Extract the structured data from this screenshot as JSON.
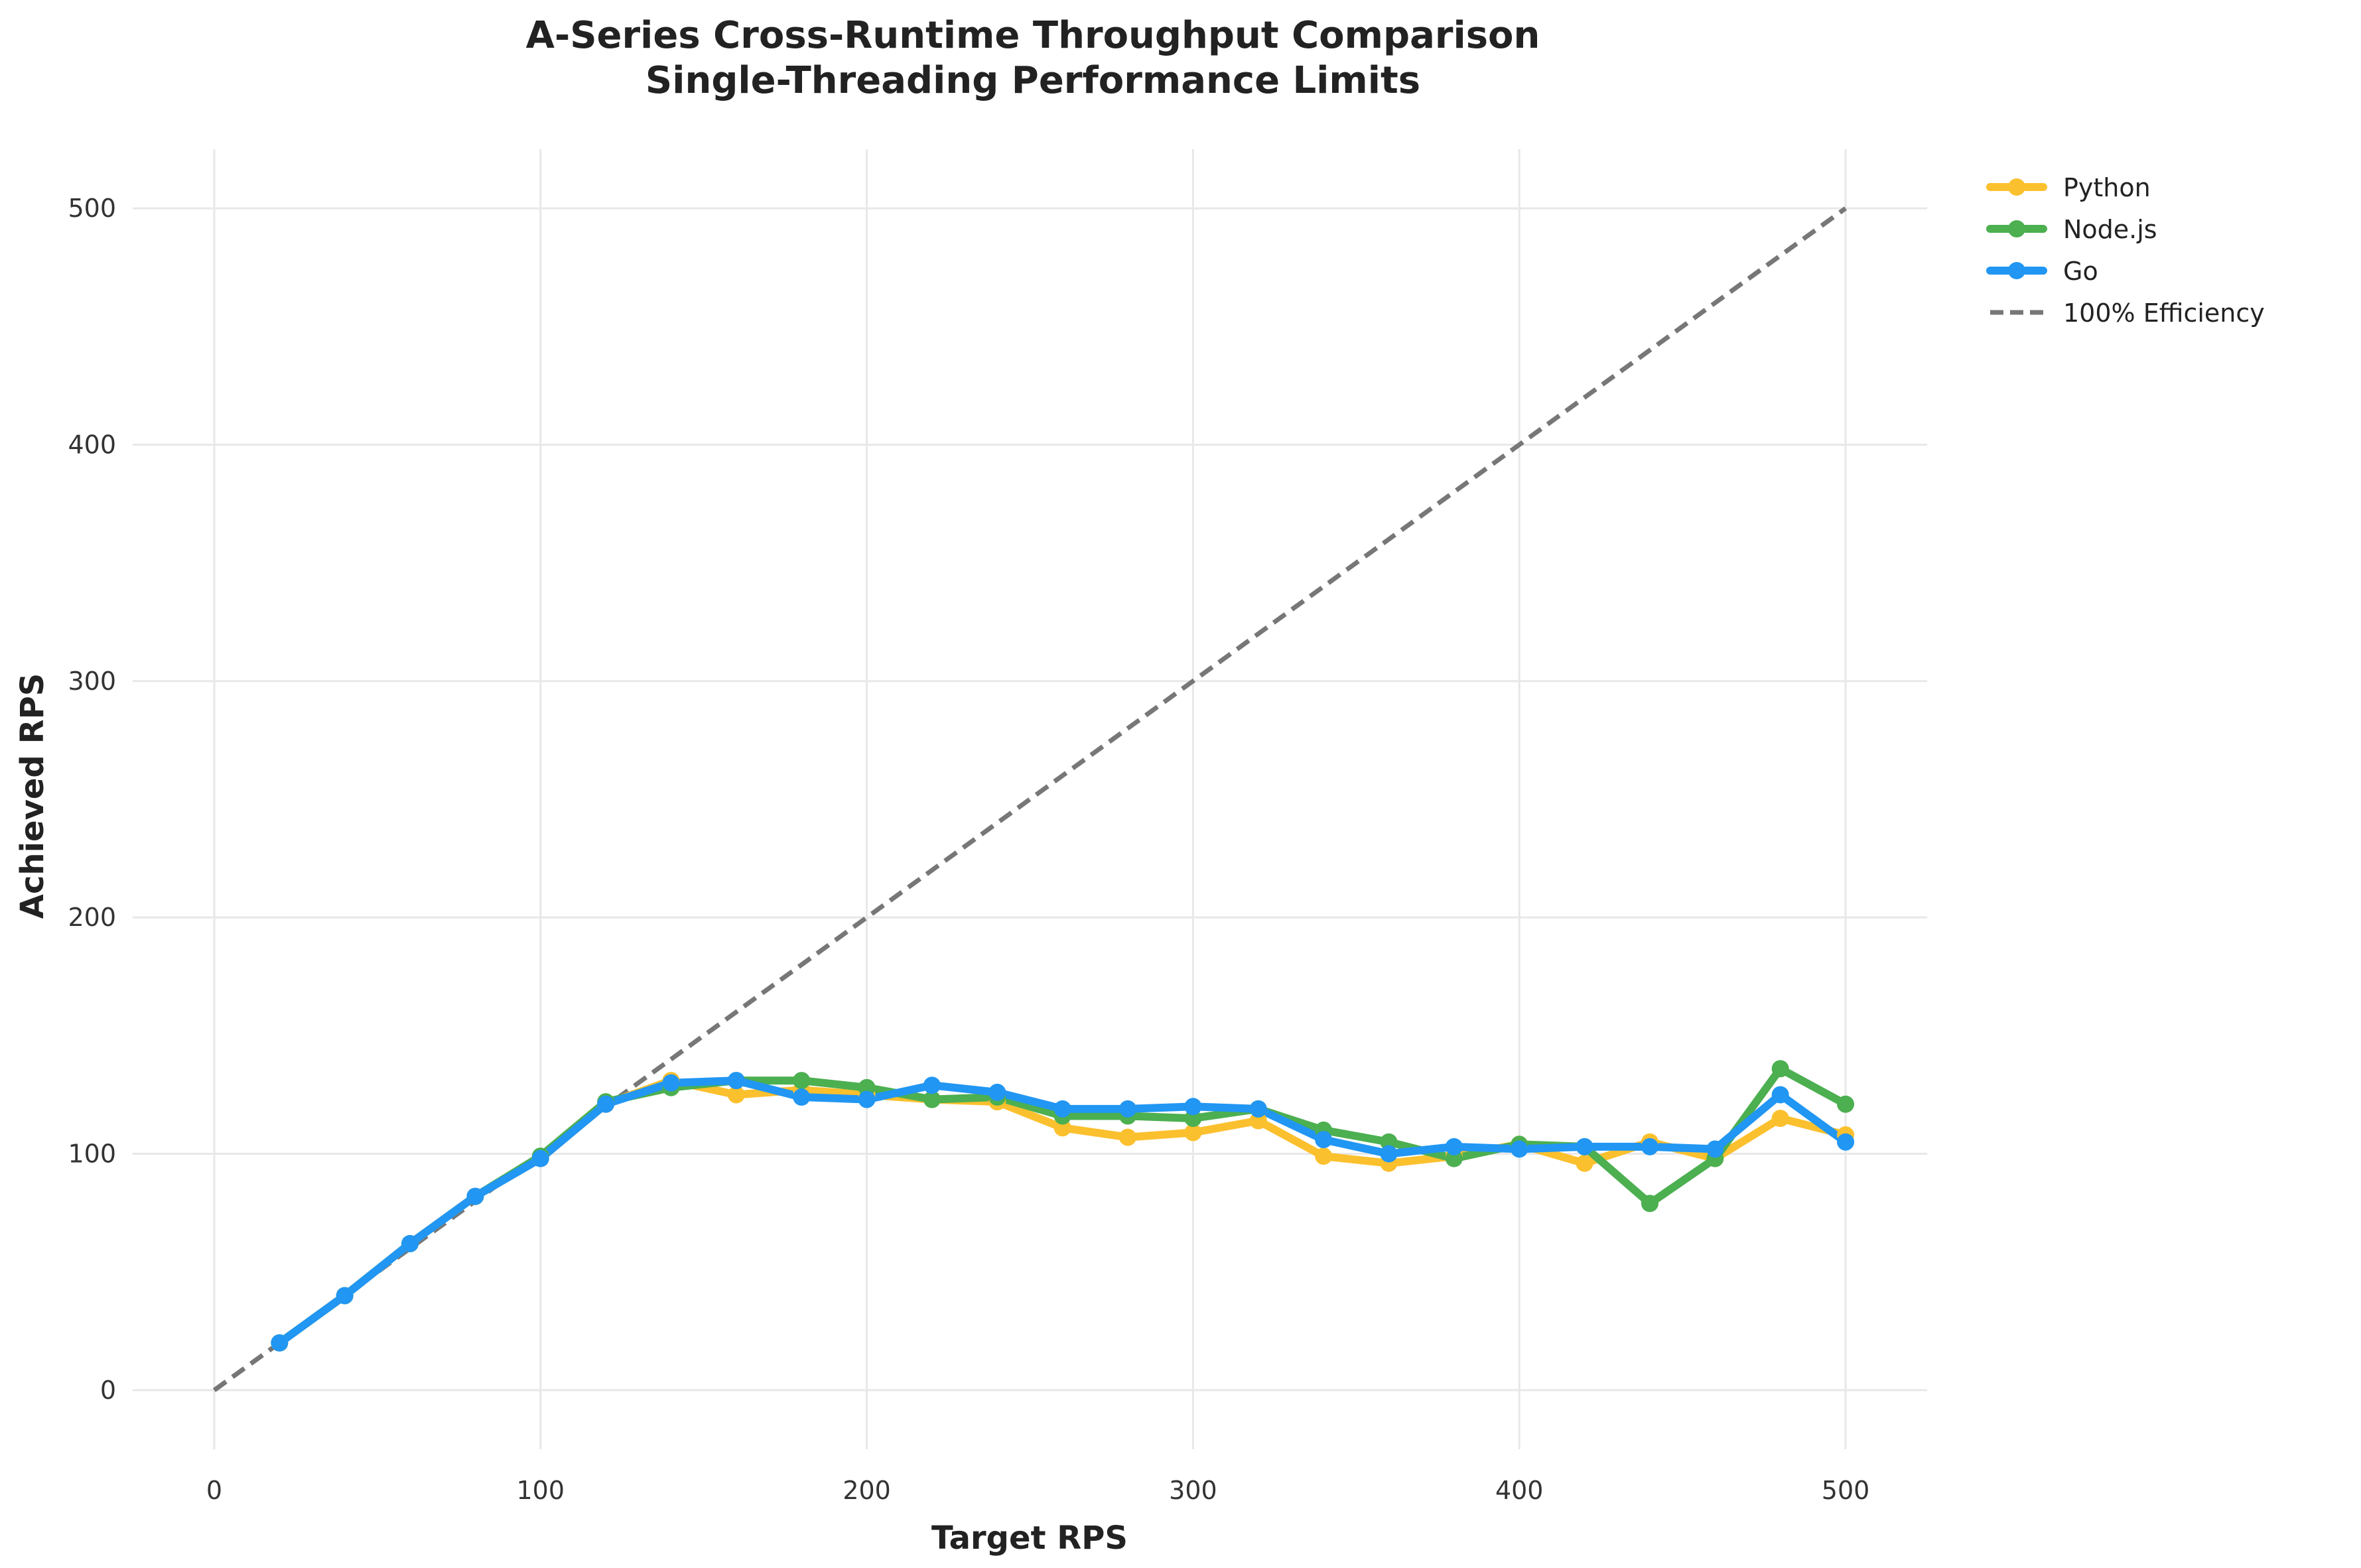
{
  "chart_data": {
    "type": "line",
    "title": "A-Series Cross-Runtime Throughput Comparison",
    "subtitle": "Single-Threading Performance Limits",
    "xlabel": "Target RPS",
    "ylabel": "Achieved RPS",
    "xlim": [
      -25,
      525
    ],
    "ylim": [
      -25,
      525
    ],
    "xticks": [
      0,
      100,
      200,
      300,
      400,
      500
    ],
    "yticks": [
      0,
      100,
      200,
      300,
      400,
      500
    ],
    "grid": true,
    "legend_position": "upper right, outside plot",
    "x": [
      20,
      40,
      60,
      80,
      100,
      120,
      140,
      160,
      180,
      200,
      220,
      240,
      260,
      280,
      300,
      320,
      340,
      360,
      380,
      400,
      420,
      440,
      460,
      480,
      500
    ],
    "series": [
      {
        "name": "Python",
        "color": "#FBC02D",
        "values": [
          20,
          40,
          62,
          82,
          98,
          121,
          131,
          125,
          127,
          125,
          123,
          122,
          111,
          107,
          109,
          114,
          99,
          96,
          99,
          104,
          96,
          105,
          98,
          115,
          108
        ]
      },
      {
        "name": "Node.js",
        "color": "#4CAF50",
        "values": [
          20,
          40,
          62,
          82,
          99,
          122,
          128,
          131,
          131,
          128,
          123,
          124,
          116,
          116,
          115,
          119,
          110,
          105,
          98,
          104,
          103,
          79,
          98,
          136,
          121
        ]
      },
      {
        "name": "Go",
        "color": "#2196F3",
        "values": [
          20,
          40,
          62,
          82,
          98,
          121,
          130,
          131,
          124,
          123,
          129,
          126,
          119,
          119,
          120,
          119,
          106,
          100,
          103,
          102,
          103,
          103,
          102,
          125,
          105
        ]
      }
    ],
    "reference_line": {
      "name": "100% Efficiency",
      "color": "#777777",
      "style": "dashed",
      "x": [
        0,
        500
      ],
      "y": [
        0,
        500
      ]
    }
  }
}
